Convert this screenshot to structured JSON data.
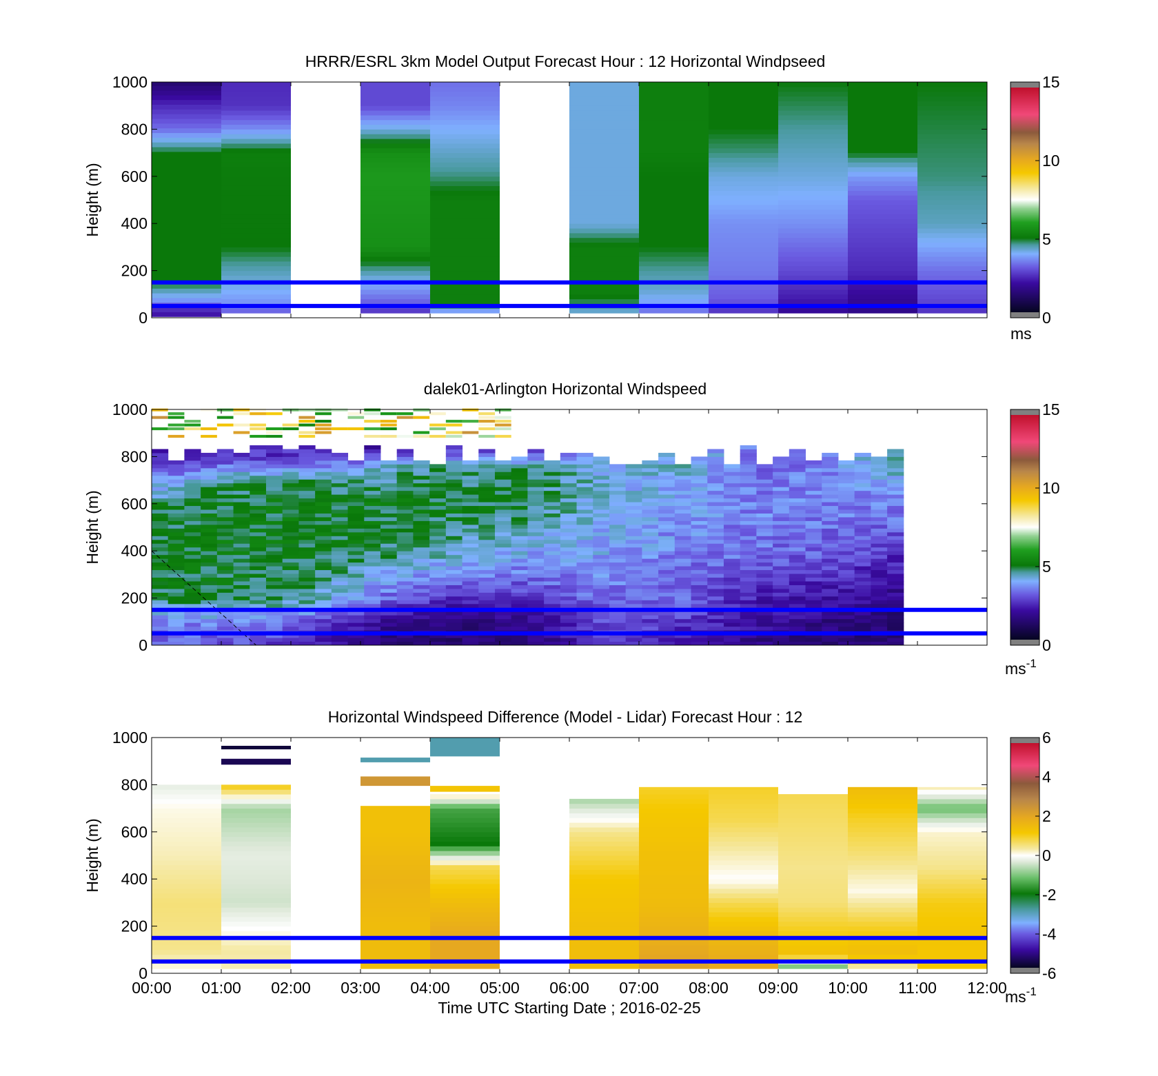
{
  "chart_data": [
    {
      "type": "heatmap",
      "title": "HRRR/ESRL 3km Model Output   Forecast Hour : 12 Horizontal Windpseed",
      "ylabel": "Height (m)",
      "xlabel": "",
      "ylim": [
        0,
        1000
      ],
      "yticks": [
        "1000",
        "800",
        "600",
        "400",
        "200",
        "0"
      ],
      "xlim": [
        "00:00",
        "12:00"
      ],
      "colorbar": {
        "min": 0,
        "max": 15,
        "ticks": [
          "15",
          "10",
          "5",
          "0"
        ],
        "unit": "ms",
        "unit_sup": "",
        "scale": "speed"
      },
      "reference_lines_m": [
        50,
        150
      ],
      "columns_hours": [
        [
          0,
          1
        ],
        [
          1,
          2
        ],
        [
          2,
          3
        ],
        [
          3,
          4
        ],
        [
          4,
          5
        ],
        [
          5,
          6
        ],
        [
          6,
          7
        ],
        [
          7,
          8
        ],
        [
          8,
          9
        ],
        [
          9,
          10
        ],
        [
          10,
          11
        ],
        [
          11,
          12
        ]
      ],
      "profiles": [
        [
          [
            5,
            2
          ],
          [
            40,
            2.5
          ],
          [
            70,
            3.5
          ],
          [
            150,
            4.8
          ],
          [
            300,
            4.8
          ],
          [
            600,
            4.8
          ],
          [
            700,
            4.8
          ],
          [
            800,
            3.2
          ],
          [
            900,
            2.4
          ],
          [
            1000,
            1.2
          ]
        ],
        [
          [
            20,
            3
          ],
          [
            60,
            3.5
          ],
          [
            150,
            4
          ],
          [
            300,
            4.8
          ],
          [
            600,
            4.9
          ],
          [
            700,
            5
          ],
          [
            800,
            3.5
          ],
          [
            900,
            2.5
          ],
          [
            1000,
            2.4
          ]
        ],
        null,
        [
          [
            20,
            2.5
          ],
          [
            60,
            3
          ],
          [
            150,
            3.8
          ],
          [
            300,
            5.5
          ],
          [
            600,
            5.8
          ],
          [
            700,
            5.5
          ],
          [
            800,
            4
          ],
          [
            900,
            2.8
          ],
          [
            1000,
            2.8
          ]
        ],
        [
          [
            20,
            3.2
          ],
          [
            60,
            5
          ],
          [
            200,
            5
          ],
          [
            500,
            5
          ],
          [
            600,
            4.5
          ],
          [
            800,
            3.8
          ],
          [
            900,
            3.4
          ],
          [
            1000,
            3.2
          ]
        ],
        null,
        [
          [
            20,
            4
          ],
          [
            100,
            5
          ],
          [
            300,
            5
          ],
          [
            400,
            4
          ],
          [
            600,
            4
          ],
          [
            1000,
            4
          ]
        ],
        [
          [
            20,
            3.2
          ],
          [
            100,
            4
          ],
          [
            300,
            4.8
          ],
          [
            600,
            4.8
          ],
          [
            700,
            5
          ],
          [
            1000,
            5
          ]
        ],
        [
          [
            20,
            2.5
          ],
          [
            80,
            3
          ],
          [
            200,
            3.3
          ],
          [
            400,
            3.5
          ],
          [
            500,
            3.8
          ],
          [
            600,
            4
          ],
          [
            700,
            4.5
          ],
          [
            800,
            4.8
          ],
          [
            1000,
            4.8
          ]
        ],
        [
          [
            20,
            1.8
          ],
          [
            80,
            2.2
          ],
          [
            200,
            2.8
          ],
          [
            400,
            3.5
          ],
          [
            600,
            4
          ],
          [
            1000,
            4.8
          ]
        ],
        [
          [
            20,
            1.6
          ],
          [
            80,
            1.8
          ],
          [
            200,
            2.4
          ],
          [
            400,
            2.8
          ],
          [
            500,
            3
          ],
          [
            600,
            3.6
          ],
          [
            700,
            4.8
          ],
          [
            1000,
            4.8
          ]
        ],
        [
          [
            20,
            2.5
          ],
          [
            80,
            2.8
          ],
          [
            200,
            3.2
          ],
          [
            400,
            4.2
          ],
          [
            600,
            4.5
          ],
          [
            1000,
            4.8
          ]
        ]
      ]
    },
    {
      "type": "heatmap",
      "title": "dalek01-Arlington  Horizontal Windspeed",
      "ylabel": "Height (m)",
      "xlabel": "",
      "ylim": [
        0,
        1000
      ],
      "yticks": [
        "1000",
        "800",
        "600",
        "400",
        "200",
        "0"
      ],
      "xlim": [
        "00:00",
        "12:00"
      ],
      "colorbar": {
        "min": 0,
        "max": 15,
        "ticks": [
          "15",
          "10",
          "5",
          "0"
        ],
        "unit": "ms",
        "unit_sup": "-1",
        "scale": "speed"
      },
      "reference_lines_m": [
        50,
        150
      ],
      "data_extent_hours": [
        0,
        10.8
      ],
      "profiles_approx": [
        [
          [
            10,
            3
          ],
          [
            100,
            3.4
          ],
          [
            200,
            4.6
          ],
          [
            400,
            4.8
          ],
          [
            600,
            4.6
          ],
          [
            700,
            3.5
          ],
          [
            800,
            2.2
          ]
        ],
        [
          [
            10,
            3
          ],
          [
            100,
            3.5
          ],
          [
            200,
            4.7
          ],
          [
            400,
            4.8
          ],
          [
            600,
            4.8
          ],
          [
            700,
            4.5
          ],
          [
            800,
            2.5
          ]
        ],
        [
          [
            10,
            2.5
          ],
          [
            100,
            3
          ],
          [
            200,
            4.5
          ],
          [
            400,
            4.8
          ],
          [
            600,
            4.8
          ],
          [
            700,
            4.5
          ],
          [
            800,
            2.5
          ]
        ],
        [
          [
            10,
            1.5
          ],
          [
            100,
            1.8
          ],
          [
            200,
            3.2
          ],
          [
            400,
            4.6
          ],
          [
            600,
            4.8
          ],
          [
            750,
            4.2
          ],
          [
            850,
            1.5
          ]
        ],
        [
          [
            10,
            1.2
          ],
          [
            100,
            1.5
          ],
          [
            200,
            2.5
          ],
          [
            400,
            4.2
          ],
          [
            600,
            4.8
          ],
          [
            760,
            4.4
          ],
          [
            850,
            2
          ]
        ],
        [
          [
            10,
            1.5
          ],
          [
            100,
            1.6
          ],
          [
            200,
            2.6
          ],
          [
            400,
            3.8
          ],
          [
            600,
            4.6
          ],
          [
            760,
            4.5
          ],
          [
            820,
            2.5
          ]
        ],
        [
          [
            10,
            2.5
          ],
          [
            100,
            2.8
          ],
          [
            200,
            3.2
          ],
          [
            400,
            3.7
          ],
          [
            600,
            3.9
          ],
          [
            800,
            4
          ]
        ],
        [
          [
            10,
            2.3
          ],
          [
            100,
            2.6
          ],
          [
            200,
            3
          ],
          [
            400,
            3.4
          ],
          [
            600,
            3.6
          ],
          [
            800,
            4.2
          ]
        ],
        [
          [
            10,
            1.6
          ],
          [
            100,
            2
          ],
          [
            200,
            2.2
          ],
          [
            400,
            3.2
          ],
          [
            600,
            3.4
          ],
          [
            800,
            3
          ]
        ],
        [
          [
            10,
            1.3
          ],
          [
            100,
            1.5
          ],
          [
            200,
            2
          ],
          [
            400,
            3
          ],
          [
            600,
            3.4
          ],
          [
            800,
            3.5
          ]
        ],
        [
          [
            10,
            1.2
          ],
          [
            100,
            1.3
          ],
          [
            200,
            1.6
          ],
          [
            400,
            2.4
          ],
          [
            600,
            3.5
          ],
          [
            800,
            4.5
          ]
        ],
        [
          [
            10,
            1.2
          ],
          [
            100,
            1.4
          ],
          [
            200,
            1.6
          ],
          [
            400,
            2.2
          ],
          [
            600,
            3.3
          ],
          [
            800,
            4.8
          ]
        ]
      ],
      "annotations": [
        {
          "kind": "dashed-line",
          "from": [
            "00:00",
            400
          ],
          "to": [
            "01:30",
            0
          ]
        }
      ]
    },
    {
      "type": "heatmap",
      "title": "Horizontal Windspeed Difference (Model - Lidar) Forecast Hour : 12",
      "ylabel": "Height (m)",
      "xlabel": "Time UTC  Starting Date ; 2016-02-25",
      "ylim": [
        0,
        1000
      ],
      "yticks": [
        "1000",
        "800",
        "600",
        "400",
        "200",
        "0"
      ],
      "xticks": [
        "00:00",
        "01:00",
        "02:00",
        "03:00",
        "04:00",
        "05:00",
        "06:00",
        "07:00",
        "08:00",
        "09:00",
        "10:00",
        "11:00",
        "12:00"
      ],
      "colorbar": {
        "min": -6,
        "max": 6,
        "ticks": [
          "6",
          "4",
          "2",
          "0",
          "-2",
          "-4",
          "-6"
        ],
        "unit": "ms",
        "unit_sup": "-1",
        "scale": "diff"
      },
      "reference_lines_m": [
        50,
        150
      ],
      "columns_hours": [
        [
          0,
          1
        ],
        [
          1,
          2
        ],
        [
          2,
          3
        ],
        [
          3,
          4
        ],
        [
          4,
          5
        ],
        [
          5,
          6
        ],
        [
          6,
          7
        ],
        [
          7,
          8
        ],
        [
          8,
          9
        ],
        [
          9,
          10
        ],
        [
          10,
          11
        ],
        [
          11,
          12
        ]
      ],
      "profiles": [
        [
          [
            20,
            0.1
          ],
          [
            100,
            0.5
          ],
          [
            300,
            0.6
          ],
          [
            500,
            0.3
          ],
          [
            700,
            0.1
          ],
          [
            800,
            -0.3
          ]
        ],
        [
          [
            20,
            0.3
          ],
          [
            100,
            0.4
          ],
          [
            300,
            -0.5
          ],
          [
            500,
            -0.3
          ],
          [
            700,
            -0.8
          ],
          [
            800,
            1.2
          ]
        ],
        null,
        [
          [
            20,
            1.5
          ],
          [
            200,
            1.5
          ],
          [
            400,
            1.7
          ],
          [
            600,
            1.4
          ],
          [
            710,
            1.4
          ]
        ],
        [
          [
            20,
            2
          ],
          [
            150,
            2
          ],
          [
            300,
            1.5
          ],
          [
            450,
            0.8
          ],
          [
            550,
            -2
          ],
          [
            700,
            -1.5
          ],
          [
            760,
            0.5
          ]
        ],
        null,
        [
          [
            20,
            1.5
          ],
          [
            200,
            1.4
          ],
          [
            400,
            1.2
          ],
          [
            600,
            0.5
          ],
          [
            740,
            -0.8
          ]
        ],
        [
          [
            20,
            2.2
          ],
          [
            150,
            1.8
          ],
          [
            300,
            1.5
          ],
          [
            500,
            1.4
          ],
          [
            700,
            1.2
          ],
          [
            790,
            1
          ]
        ],
        [
          [
            20,
            2
          ],
          [
            150,
            1.6
          ],
          [
            300,
            0.8
          ],
          [
            400,
            0
          ],
          [
            500,
            0.3
          ],
          [
            650,
            0.8
          ],
          [
            790,
            1
          ]
        ],
        [
          [
            20,
            -1.5
          ],
          [
            80,
            1.4
          ],
          [
            200,
            1
          ],
          [
            300,
            0.6
          ],
          [
            450,
            0.5
          ],
          [
            650,
            0.7
          ],
          [
            760,
            0.8
          ]
        ],
        [
          [
            20,
            0.2
          ],
          [
            80,
            1.5
          ],
          [
            200,
            1
          ],
          [
            350,
            0.1
          ],
          [
            500,
            0.6
          ],
          [
            650,
            1
          ],
          [
            790,
            1.5
          ]
        ],
        [
          [
            20,
            1.2
          ],
          [
            150,
            1.3
          ],
          [
            300,
            1.1
          ],
          [
            450,
            0.5
          ],
          [
            600,
            0.2
          ],
          [
            700,
            -1.2
          ],
          [
            790,
            0.3
          ]
        ]
      ],
      "extra_bands": [
        {
          "col": 1,
          "m": [
            950,
            965
          ],
          "value": -5.8
        },
        {
          "col": 1,
          "m": [
            885,
            910
          ],
          "value": -5.6
        },
        {
          "col": 3,
          "m": [
            895,
            915
          ],
          "value": -3
        },
        {
          "col": 3,
          "m": [
            795,
            835
          ],
          "value": 2.5
        },
        {
          "col": 4,
          "m": [
            920,
            1000
          ],
          "value": -3
        },
        {
          "col": 4,
          "m": [
            770,
            795
          ],
          "value": 1.3
        }
      ]
    }
  ]
}
